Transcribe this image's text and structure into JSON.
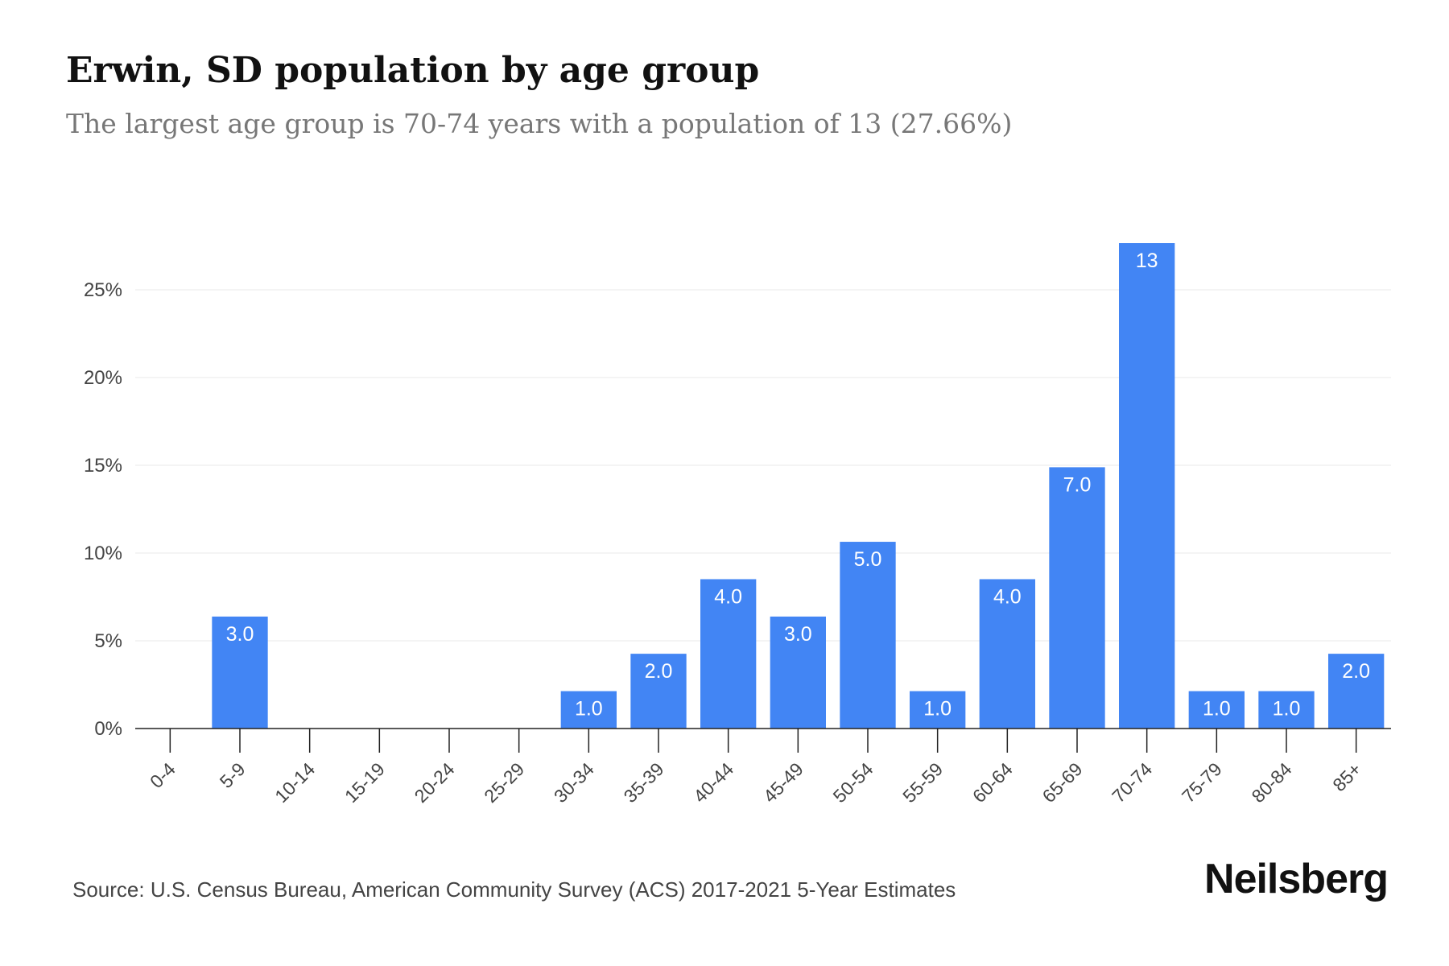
{
  "header": {
    "title": "Erwin, SD population by age group",
    "subtitle": "The largest age group is 70-74 years with a population of 13 (27.66%)"
  },
  "footer": {
    "source": "Source: U.S. Census Bureau, American Community Survey (ACS) 2017-2021 5-Year Estimates",
    "brand": "Neilsberg"
  },
  "colors": {
    "bar": "#4285f4",
    "grid": "#e8e8e8",
    "axis": "#222222"
  },
  "chart_data": {
    "type": "bar",
    "title": "Erwin, SD population by age group",
    "subtitle": "The largest age group is 70-74 years with a population of 13 (27.66%)",
    "xlabel": "",
    "ylabel": "",
    "categories": [
      "0-4",
      "5-9",
      "10-14",
      "15-19",
      "20-24",
      "25-29",
      "30-34",
      "35-39",
      "40-44",
      "45-49",
      "50-54",
      "55-59",
      "60-64",
      "65-69",
      "70-74",
      "75-79",
      "80-84",
      "85+"
    ],
    "series": [
      {
        "values": [
          0,
          6.38,
          0,
          0,
          0,
          0,
          2.13,
          4.26,
          8.51,
          6.38,
          10.64,
          2.13,
          8.51,
          14.89,
          27.66,
          2.13,
          2.13,
          4.26
        ],
        "data_labels": [
          "",
          "3.0",
          "",
          "",
          "",
          "",
          "1.0",
          "2.0",
          "4.0",
          "3.0",
          "5.0",
          "1.0",
          "4.0",
          "7.0",
          "13",
          "1.0",
          "1.0",
          "2.0"
        ]
      }
    ],
    "yticks": [
      0,
      5,
      10,
      15,
      20,
      25
    ],
    "ytick_labels": [
      "0%",
      "5%",
      "10%",
      "15%",
      "20%",
      "25%"
    ],
    "ylim": [
      0,
      28
    ],
    "grid": true,
    "legend": "none"
  }
}
